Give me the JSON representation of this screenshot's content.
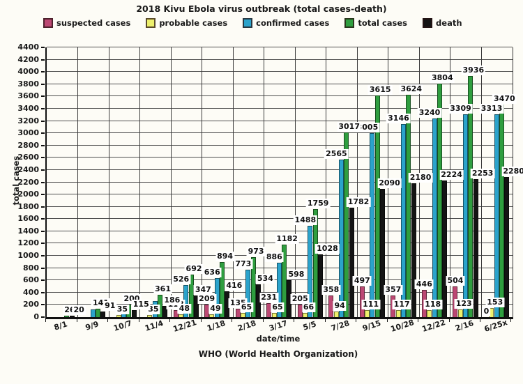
{
  "title": "2018 Kivu  Ebola virus outbreak (total cases-death)",
  "footer": "WHO (World Health Organization)",
  "axes": {
    "y_label": "total cases",
    "x_label": "date/time",
    "y_min": 0,
    "y_max": 4400,
    "y_step": 200
  },
  "legend": [
    {
      "label": "suspected cases",
      "color": "#bc4873"
    },
    {
      "label": "probable cases",
      "color": "#edf06c"
    },
    {
      "label": "confirmed cases",
      "color": "#2ba3cb"
    },
    {
      "label": "total cases",
      "color": "#2f9e3f"
    },
    {
      "label": "death",
      "color": "#141414"
    }
  ],
  "chart_data": {
    "type": "bar",
    "title": "2018 Kivu  Ebola virus outbreak (total cases-death)",
    "xlabel": "date/time",
    "ylabel": "total cases",
    "ylim": [
      0,
      4400
    ],
    "grid": true,
    "legend_position": "top",
    "categories": [
      "8/1",
      "9/9",
      "10/7",
      "11/4",
      "12/21",
      "1/18",
      "2/18",
      "3/17",
      "5/5",
      "7/28",
      "9/15",
      "10/28",
      "12/22",
      "2/16",
      "6/25x"
    ],
    "series": [
      {
        "name": "suspected cases",
        "color": "#bc4873",
        "values": [
          0,
          0,
          0,
          0,
          118,
          209,
          135,
          231,
          205,
          358,
          497,
          357,
          446,
          504,
          0
        ],
        "labels": [
          null,
          null,
          null,
          null,
          "118",
          "209",
          "135",
          "231",
          "205",
          "358",
          "497",
          "357",
          "446",
          "504",
          "0"
        ]
      },
      {
        "name": "probable cases",
        "color": "#edf06c",
        "values": [
          0,
          0,
          35,
          35,
          48,
          49,
          65,
          65,
          66,
          94,
          111,
          117,
          118,
          123,
          153
        ],
        "labels": [
          null,
          null,
          "35",
          "35",
          "48",
          "49",
          "65",
          "65",
          "66",
          "94",
          "111",
          "117",
          "118",
          "123",
          "153"
        ]
      },
      {
        "name": "confirmed cases",
        "color": "#2ba3cb",
        "values": [
          0,
          130,
          146,
          265,
          526,
          636,
          773,
          886,
          1488,
          2565,
          3005,
          3146,
          3240,
          3309,
          3313
        ],
        "labels": [
          null,
          null,
          null,
          null,
          "526",
          "636",
          "773",
          "886",
          "1488",
          "2565",
          "3005",
          "3146",
          "3240",
          "3309",
          "3313"
        ]
      },
      {
        "name": "total cases",
        "color": "#2f9e3f",
        "values": [
          26,
          141,
          200,
          361,
          692,
          894,
          973,
          1182,
          1759,
          3017,
          3615,
          3624,
          3804,
          3936,
          3470
        ],
        "labels": [
          "26",
          "141",
          "200",
          "361",
          "692",
          "894",
          "973",
          "1182",
          "1759",
          "3017",
          "3615",
          "3624",
          "3804",
          "3936",
          "3470"
        ]
      },
      {
        "name": "death",
        "color": "#141414",
        "values": [
          20,
          91,
          115,
          186,
          347,
          416,
          534,
          598,
          1028,
          1782,
          2090,
          2180,
          2224,
          2253,
          2280
        ],
        "labels": [
          "20",
          "91",
          "115",
          "186",
          "347",
          "416",
          "534",
          "598",
          "1028",
          "1782",
          "2090",
          "2180",
          "2224",
          "2253",
          "2280"
        ]
      }
    ]
  }
}
